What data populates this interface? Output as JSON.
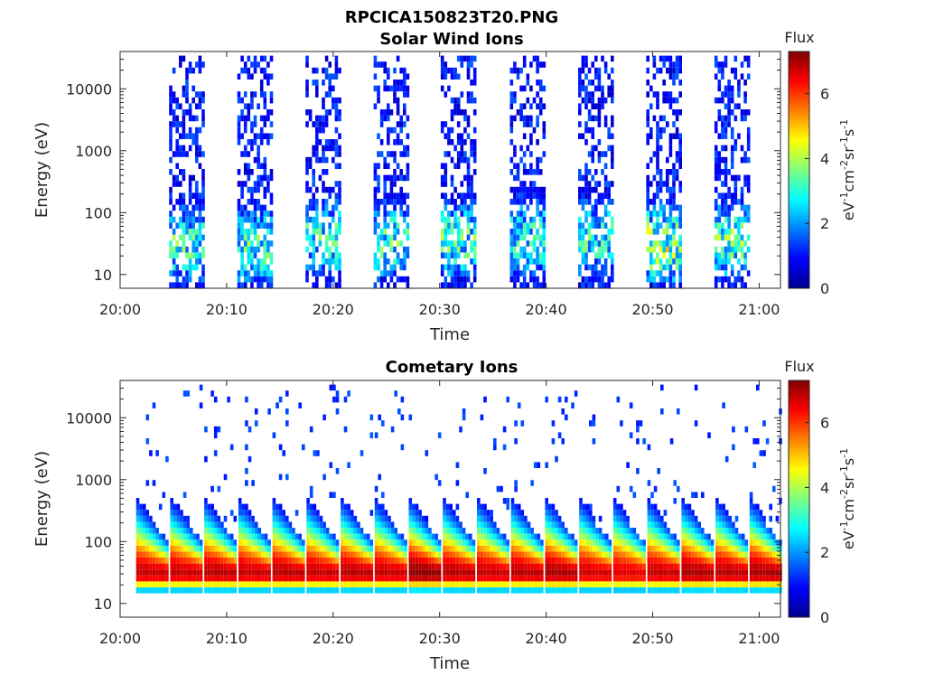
{
  "figure": {
    "main_title": "RPCICA150823T20.PNG"
  },
  "colors": {
    "colormap": [
      "#00008f",
      "#0000ff",
      "#007fff",
      "#00ffff",
      "#7fff7f",
      "#ffff00",
      "#ff7f00",
      "#ff0000",
      "#7f0000"
    ],
    "axes_frame": "#262626"
  },
  "chart_data": [
    {
      "type": "heatmap",
      "title": "Solar Wind Ions",
      "xlabel": "Time",
      "ylabel": "Energy (eV)",
      "y_scale": "log",
      "x_range": [
        "20:00",
        "21:02"
      ],
      "ylim": [
        6,
        40000
      ],
      "x_ticks": [
        "20:00",
        "20:10",
        "20:20",
        "20:30",
        "20:40",
        "20:50",
        "21:00"
      ],
      "y_ticks": [
        "10",
        "100",
        "1000",
        "10000"
      ],
      "colorbar": {
        "label": "Flux",
        "unit_label": "eV-1cm-2sr-1s-1",
        "range": [
          0,
          7.3
        ],
        "ticks": [
          "0",
          "2",
          "4",
          "6"
        ]
      },
      "bursts": [
        {
          "start": "20:04.6",
          "end": "20:07.8",
          "peak_energy_eV": 30,
          "peak_flux": 4.2
        },
        {
          "start": "20:11.0",
          "end": "20:14.3",
          "peak_energy_eV": 30,
          "peak_flux": 4.2
        },
        {
          "start": "20:17.4",
          "end": "20:20.6",
          "peak_energy_eV": 40,
          "peak_flux": 4.0
        },
        {
          "start": "20:23.8",
          "end": "20:27.1",
          "peak_energy_eV": 35,
          "peak_flux": 4.2
        },
        {
          "start": "20:30.1",
          "end": "20:33.4",
          "peak_energy_eV": 35,
          "peak_flux": 4.2
        },
        {
          "start": "20:36.6",
          "end": "20:39.8",
          "peak_energy_eV": 40,
          "peak_flux": 4.0
        },
        {
          "start": "20:43.0",
          "end": "20:46.1",
          "peak_energy_eV": 40,
          "peak_flux": 4.0
        },
        {
          "start": "20:49.4",
          "end": "20:52.6",
          "peak_energy_eV": 30,
          "peak_flux": 5.2
        },
        {
          "start": "20:55.8",
          "end": "20:58.9",
          "peak_energy_eV": 35,
          "peak_flux": 4.5
        }
      ]
    },
    {
      "type": "heatmap",
      "title": "Cometary Ions",
      "xlabel": "Time",
      "ylabel": "Energy (eV)",
      "y_scale": "log",
      "x_range": [
        "20:00",
        "21:02"
      ],
      "ylim": [
        6,
        40000
      ],
      "x_ticks": [
        "20:00",
        "20:10",
        "20:20",
        "20:30",
        "20:40",
        "20:50",
        "21:00"
      ],
      "y_ticks": [
        "10",
        "100",
        "1000",
        "10000"
      ],
      "colorbar": {
        "label": "Flux",
        "unit_label": "eV-1cm-2sr-1s-1",
        "range": [
          0,
          7.3
        ],
        "ticks": [
          "0",
          "2",
          "4",
          "6"
        ]
      },
      "bursts": [
        {
          "start": "20:01.5",
          "end": "20:04.5",
          "peak_energy_eV": 30,
          "peak_flux": 6.8
        },
        {
          "start": "20:04.7",
          "end": "20:07.7",
          "peak_energy_eV": 30,
          "peak_flux": 6.8
        },
        {
          "start": "20:07.9",
          "end": "20:10.9",
          "peak_energy_eV": 30,
          "peak_flux": 6.9
        },
        {
          "start": "20:11.1",
          "end": "20:14.1",
          "peak_energy_eV": 30,
          "peak_flux": 6.8
        },
        {
          "start": "20:14.3",
          "end": "20:17.3",
          "peak_energy_eV": 30,
          "peak_flux": 6.9
        },
        {
          "start": "20:17.5",
          "end": "20:20.5",
          "peak_energy_eV": 30,
          "peak_flux": 6.8
        },
        {
          "start": "20:20.7",
          "end": "20:23.7",
          "peak_energy_eV": 30,
          "peak_flux": 6.9
        },
        {
          "start": "20:23.9",
          "end": "20:26.9",
          "peak_energy_eV": 30,
          "peak_flux": 6.8
        },
        {
          "start": "20:27.1",
          "end": "20:30.1",
          "peak_energy_eV": 30,
          "peak_flux": 7.2
        },
        {
          "start": "20:30.3",
          "end": "20:33.3",
          "peak_energy_eV": 30,
          "peak_flux": 6.9
        },
        {
          "start": "20:33.5",
          "end": "20:36.5",
          "peak_energy_eV": 30,
          "peak_flux": 6.8
        },
        {
          "start": "20:36.7",
          "end": "20:39.7",
          "peak_energy_eV": 30,
          "peak_flux": 6.9
        },
        {
          "start": "20:39.9",
          "end": "20:42.9",
          "peak_energy_eV": 30,
          "peak_flux": 7.0
        },
        {
          "start": "20:43.1",
          "end": "20:46.1",
          "peak_energy_eV": 30,
          "peak_flux": 6.7
        },
        {
          "start": "20:46.3",
          "end": "20:49.3",
          "peak_energy_eV": 30,
          "peak_flux": 6.6
        },
        {
          "start": "20:49.5",
          "end": "20:52.5",
          "peak_energy_eV": 30,
          "peak_flux": 6.8
        },
        {
          "start": "20:52.7",
          "end": "20:55.7",
          "peak_energy_eV": 30,
          "peak_flux": 7.0
        },
        {
          "start": "20:55.9",
          "end": "20:58.9",
          "peak_energy_eV": 30,
          "peak_flux": 6.9
        },
        {
          "start": "20:59.1",
          "end": "21:02.0",
          "peak_energy_eV": 30,
          "peak_flux": 7.0
        }
      ]
    }
  ]
}
